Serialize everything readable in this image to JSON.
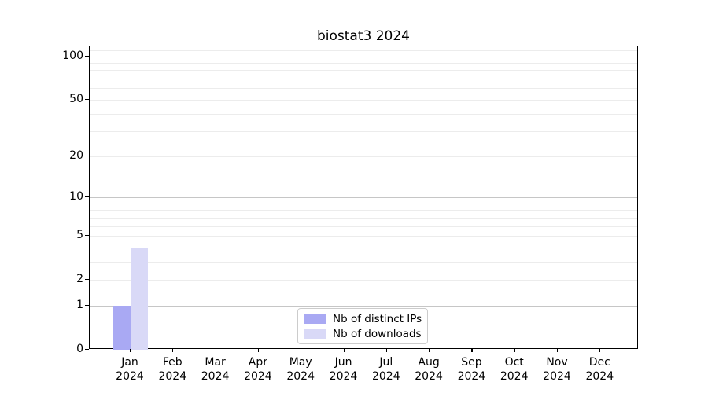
{
  "chart_data": {
    "type": "bar",
    "title": "biostat3 2024",
    "categories": [
      "Jan 2024",
      "Feb 2024",
      "Mar 2024",
      "Apr 2024",
      "May 2024",
      "Jun 2024",
      "Jul 2024",
      "Aug 2024",
      "Sep 2024",
      "Oct 2024",
      "Nov 2024",
      "Dec 2024"
    ],
    "series": [
      {
        "name": "Nb of distinct IPs",
        "color": "#a9a9f3",
        "values": [
          1,
          0,
          0,
          0,
          0,
          0,
          0,
          0,
          0,
          0,
          0,
          0
        ]
      },
      {
        "name": "Nb of downloads",
        "color": "#d9d9f7",
        "values": [
          4,
          0,
          0,
          0,
          0,
          0,
          0,
          0,
          0,
          0,
          0,
          0
        ]
      }
    ],
    "xlabel": "",
    "ylabel": "",
    "y_axis": {
      "scale": "log10(1+v)",
      "tick_values": [
        0,
        1,
        2,
        5,
        10,
        20,
        50,
        100
      ],
      "tick_labels": [
        "0",
        "1",
        "2",
        "5",
        "10",
        "20",
        "50",
        "100"
      ],
      "axis_max": 117,
      "major_gridlines": [
        1,
        10,
        100
      ],
      "minor_gridlines": [
        2,
        3,
        4,
        5,
        6,
        7,
        8,
        9,
        20,
        30,
        40,
        50,
        60,
        70,
        80,
        90,
        110
      ],
      "major_grid_color": "#c6c6c6",
      "minor_grid_color": "#ececec"
    },
    "legend": {
      "position": "lower center"
    },
    "grid": true,
    "frame": true
  }
}
